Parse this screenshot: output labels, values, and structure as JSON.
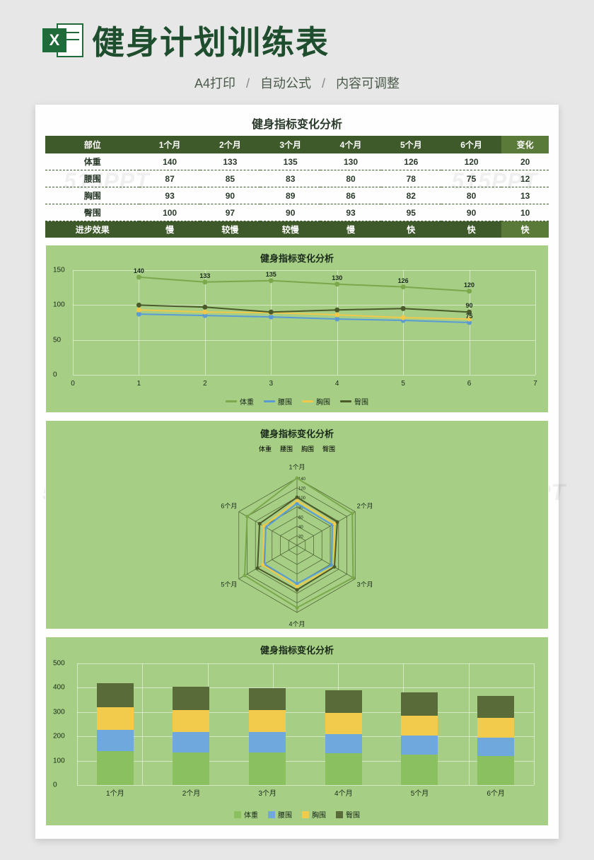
{
  "header": {
    "main_title": "健身计划训练表",
    "sub1": "A4打印",
    "sub2": "自动公式",
    "sub3": "内容可调整",
    "excel_x": "X"
  },
  "watermark": "515PPT",
  "sheet_title": "健身指标变化分析",
  "colors": {
    "header_bg": "#3f5a2a",
    "header_last_bg": "#5a7a3a",
    "chart_bg": "#a6ce85",
    "grid_line": "rgba(255,255,255,.5)",
    "series": {
      "weight": "#7aa84b",
      "waist": "#5a9bd5",
      "chest": "#f0c94a",
      "hip": "#4a5a2a"
    },
    "bar_series": {
      "weight": "#8bc060",
      "waist": "#6fa8dc",
      "chest": "#f2ca4c",
      "hip": "#5a6b3a"
    }
  },
  "table": {
    "columns": [
      "部位",
      "1个月",
      "2个月",
      "3个月",
      "4个月",
      "5个月",
      "6个月",
      "变化"
    ],
    "rows": [
      {
        "label": "体重",
        "v": [
          140,
          133,
          135,
          130,
          126,
          120
        ],
        "change": 20
      },
      {
        "label": "腰围",
        "v": [
          87,
          85,
          83,
          80,
          78,
          75
        ],
        "change": 12
      },
      {
        "label": "胸围",
        "v": [
          93,
          90,
          89,
          86,
          82,
          80
        ],
        "change": 13
      },
      {
        "label": "臀围",
        "v": [
          100,
          97,
          90,
          93,
          95,
          90
        ],
        "change": 10
      }
    ],
    "progress_label": "进步效果",
    "progress": [
      "慢",
      "较慢",
      "较慢",
      "慢",
      "快",
      "快",
      "快"
    ]
  },
  "line_chart": {
    "title": "健身指标变化分析",
    "xlim": [
      0,
      7
    ],
    "ylim": [
      0,
      150
    ],
    "ytick_step": 50,
    "xticks": [
      0,
      1,
      2,
      3,
      4,
      5,
      6,
      7
    ],
    "series": [
      {
        "name": "体重",
        "key": "weight",
        "data": [
          140,
          133,
          135,
          130,
          126,
          120
        ]
      },
      {
        "name": "腰围",
        "key": "waist",
        "data": [
          87,
          85,
          83,
          80,
          78,
          75
        ]
      },
      {
        "name": "胸围",
        "key": "chest",
        "data": [
          93,
          90,
          89,
          86,
          82,
          80
        ]
      },
      {
        "name": "臀围",
        "key": "hip",
        "data": [
          100,
          97,
          90,
          93,
          95,
          90
        ]
      }
    ]
  },
  "radar_chart": {
    "title": "健身指标变化分析",
    "axes": [
      "1个月",
      "2个月",
      "3个月",
      "4个月",
      "5个月",
      "6个月"
    ],
    "rings": [
      20,
      40,
      60,
      80,
      100,
      120,
      140
    ],
    "max": 140,
    "series": [
      {
        "name": "体重",
        "key": "weight",
        "data": [
          140,
          133,
          135,
          130,
          126,
          120
        ]
      },
      {
        "name": "腰围",
        "key": "waist",
        "data": [
          87,
          85,
          83,
          80,
          78,
          75
        ]
      },
      {
        "name": "胸围",
        "key": "chest",
        "data": [
          93,
          90,
          89,
          86,
          82,
          80
        ]
      },
      {
        "name": "臀围",
        "key": "hip",
        "data": [
          100,
          97,
          90,
          93,
          95,
          90
        ]
      }
    ]
  },
  "bar_chart": {
    "title": "健身指标变化分析",
    "ylim": [
      0,
      500
    ],
    "ytick_step": 100,
    "categories": [
      "1个月",
      "2个月",
      "3个月",
      "4个月",
      "5个月",
      "6个月"
    ],
    "series": [
      {
        "name": "体重",
        "key": "weight",
        "data": [
          140,
          133,
          135,
          130,
          126,
          120
        ]
      },
      {
        "name": "腰围",
        "key": "waist",
        "data": [
          87,
          85,
          83,
          80,
          78,
          75
        ]
      },
      {
        "name": "胸围",
        "key": "chest",
        "data": [
          93,
          90,
          89,
          86,
          82,
          80
        ]
      },
      {
        "name": "臀围",
        "key": "hip",
        "data": [
          100,
          97,
          90,
          93,
          95,
          90
        ]
      }
    ]
  }
}
